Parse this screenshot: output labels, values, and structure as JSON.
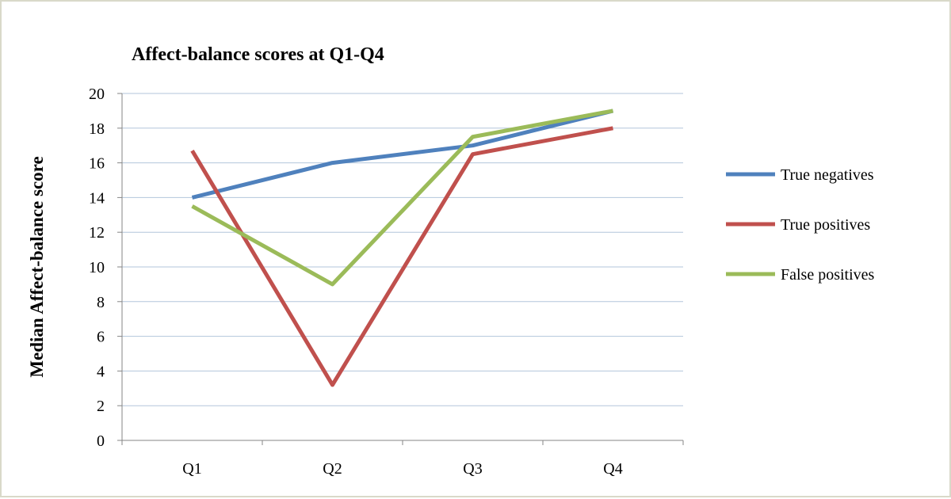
{
  "chart_data": {
    "type": "line",
    "title": "Affect-balance scores at Q1-Q4",
    "xlabel": "",
    "ylabel": "Median Affect-balance score",
    "categories": [
      "Q1",
      "Q2",
      "Q3",
      "Q4"
    ],
    "ylim": [
      0,
      20
    ],
    "yticks": [
      0,
      2,
      4,
      6,
      8,
      10,
      12,
      14,
      16,
      18,
      20
    ],
    "grid": true,
    "legend": "right",
    "series": [
      {
        "name": "True negatives",
        "color": "#4f81bd",
        "values": [
          14,
          16,
          17,
          19
        ]
      },
      {
        "name": "True positives",
        "color": "#c0504d",
        "values": [
          16.7,
          3.2,
          16.5,
          18
        ]
      },
      {
        "name": "False positives",
        "color": "#9bbb59",
        "values": [
          13.5,
          9,
          17.5,
          19
        ]
      }
    ]
  }
}
